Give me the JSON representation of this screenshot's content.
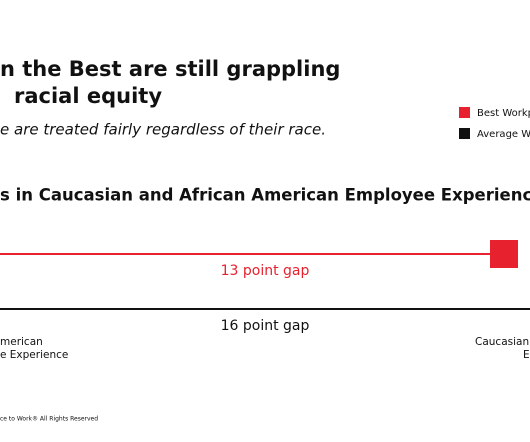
{
  "header": {
    "title_lines": [
      "n the Best are still grappling",
      "racial equity"
    ],
    "subtitle": "e are treated fairly regardless of their race."
  },
  "legend": {
    "items": [
      "Best Workp",
      "Average W"
    ]
  },
  "chart": {
    "title": "s in Caucasian and African American Employee Experiences",
    "gap_labels": [
      "13 point gap",
      "16 point gap"
    ],
    "left_label": [
      "merican",
      "e Experience"
    ],
    "right_label": [
      "Caucasian",
      "E"
    ]
  },
  "footer": "ce to Work® All Rights Reserved"
}
